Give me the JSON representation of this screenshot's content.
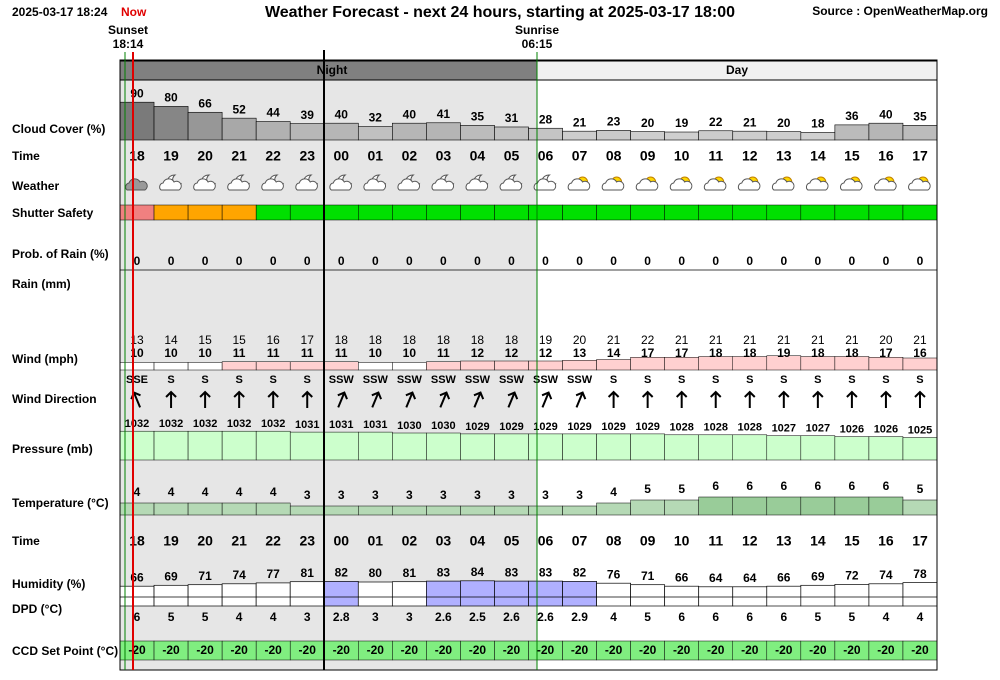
{
  "header": {
    "timestamp": "2025-03-17 18:24",
    "now": "Now",
    "title": "Weather Forecast - next 24 hours, starting at 2025-03-17 18:00",
    "source": "Source : OpenWeatherMap.org"
  },
  "sunset": {
    "label": "Sunset",
    "time": "18:14"
  },
  "sunrise": {
    "label": "Sunrise",
    "time": "06:15"
  },
  "periods": [
    "Night",
    "Day"
  ],
  "row_labels": [
    "Cloud Cover (%)",
    "Time",
    "Weather",
    "Shutter Safety",
    "Prob. of Rain (%)",
    "Rain (mm)",
    "Wind (mph)",
    "Wind Direction",
    "Pressure (mb)",
    "Temperature (°C)",
    "Time",
    "Humidity (%)",
    "DPD (°C)",
    "CCD Set Point (°C)"
  ],
  "hours": [
    "18",
    "19",
    "20",
    "21",
    "22",
    "23",
    "00",
    "01",
    "02",
    "03",
    "04",
    "05",
    "06",
    "07",
    "08",
    "09",
    "10",
    "11",
    "12",
    "13",
    "14",
    "15",
    "16",
    "17"
  ],
  "cloud_cover": [
    90,
    80,
    66,
    52,
    44,
    39,
    40,
    32,
    40,
    41,
    35,
    31,
    28,
    21,
    23,
    20,
    19,
    22,
    21,
    20,
    18,
    36,
    40,
    35
  ],
  "shutter_colors": [
    "#f08080",
    "#ffa500",
    "#ffa500",
    "#ffa500",
    "#00e000",
    "#00e000",
    "#00e000",
    "#00e000",
    "#00e000",
    "#00e000",
    "#00e000",
    "#00e000",
    "#00e000",
    "#00e000",
    "#00e000",
    "#00e000",
    "#00e000",
    "#00e000",
    "#00e000",
    "#00e000",
    "#00e000",
    "#00e000",
    "#00e000",
    "#00e000"
  ],
  "rain_probability": [
    0,
    0,
    0,
    0,
    0,
    0,
    0,
    0,
    0,
    0,
    0,
    0,
    0,
    0,
    0,
    0,
    0,
    0,
    0,
    0,
    0,
    0,
    0,
    0
  ],
  "wind_gust": [
    13,
    14,
    15,
    15,
    16,
    17,
    18,
    18,
    18,
    18,
    18,
    18,
    19,
    20,
    21,
    22,
    21,
    21,
    21,
    21,
    21,
    21,
    20,
    21
  ],
  "wind_speed": [
    10,
    10,
    10,
    11,
    11,
    11,
    11,
    10,
    10,
    11,
    12,
    12,
    12,
    13,
    14,
    17,
    17,
    18,
    18,
    19,
    18,
    18,
    17,
    16
  ],
  "wind_direction": [
    "SSE",
    "S",
    "S",
    "S",
    "S",
    "S",
    "SSW",
    "SSW",
    "SSW",
    "SSW",
    "SSW",
    "SSW",
    "SSW",
    "SSW",
    "S",
    "S",
    "S",
    "S",
    "S",
    "S",
    "S",
    "S",
    "S",
    "S"
  ],
  "pressure": [
    1032,
    1032,
    1032,
    1032,
    1032,
    1031,
    1031,
    1031,
    1030,
    1030,
    1029,
    1029,
    1029,
    1029,
    1029,
    1029,
    1028,
    1028,
    1028,
    1027,
    1027,
    1026,
    1026,
    1025
  ],
  "temperature": [
    4,
    4,
    4,
    4,
    4,
    3,
    3,
    3,
    3,
    3,
    3,
    3,
    3,
    3,
    4,
    5,
    5,
    6,
    6,
    6,
    6,
    6,
    6,
    5
  ],
  "humidity": [
    66,
    69,
    71,
    74,
    77,
    81,
    82,
    80,
    81,
    83,
    84,
    83,
    83,
    82,
    76,
    71,
    66,
    64,
    64,
    66,
    69,
    72,
    74,
    78
  ],
  "dpd": [
    6,
    5,
    5,
    4,
    4,
    3,
    2.8,
    3,
    3,
    2.6,
    2.5,
    2.6,
    2.6,
    2.9,
    4,
    5,
    6,
    6,
    6,
    6,
    5,
    5,
    4,
    4
  ],
  "ccd_set_point": [
    -20,
    -20,
    -20,
    -20,
    -20,
    -20,
    -20,
    -20,
    -20,
    -20,
    -20,
    -20,
    -20,
    -20,
    -20,
    -20,
    -20,
    -20,
    -20,
    -20,
    -20,
    -20,
    -20,
    -20
  ]
}
